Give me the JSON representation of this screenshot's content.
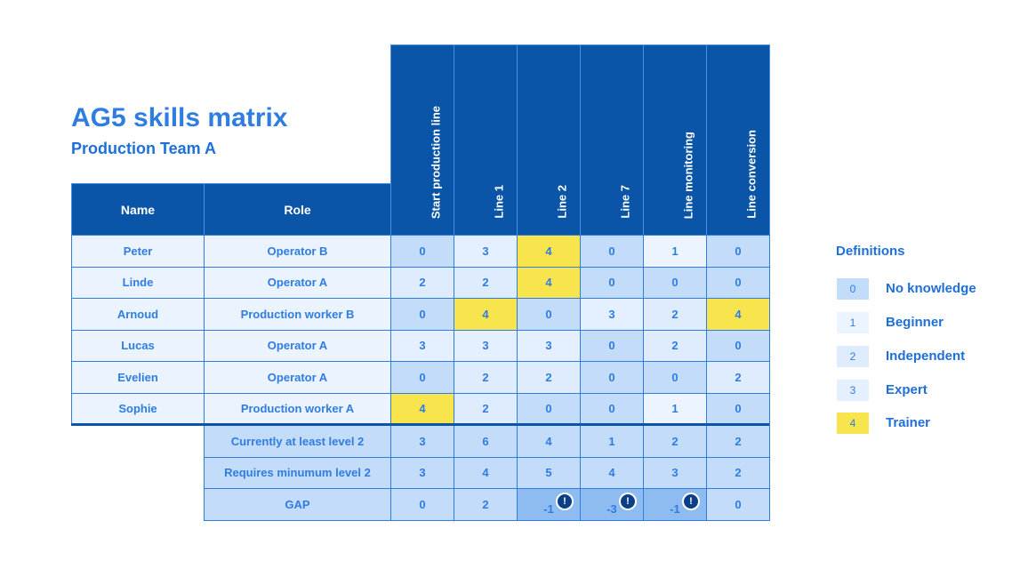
{
  "title": "AG5 skills matrix",
  "subtitle": "Production Team A",
  "headers": {
    "name": "Name",
    "role": "Role",
    "skills": [
      "Start production line",
      "Line 1",
      "Line 2",
      "Line 7",
      "Line monitoring",
      "Line conversion"
    ]
  },
  "rows": [
    {
      "name": "Peter",
      "role": "Operator B",
      "levels": [
        0,
        3,
        4,
        0,
        1,
        0
      ]
    },
    {
      "name": "Linde",
      "role": "Operator A",
      "levels": [
        2,
        2,
        4,
        0,
        0,
        0
      ]
    },
    {
      "name": "Arnoud",
      "role": "Production worker B",
      "levels": [
        0,
        4,
        0,
        3,
        2,
        4
      ]
    },
    {
      "name": "Lucas",
      "role": "Operator A",
      "levels": [
        3,
        3,
        3,
        0,
        2,
        0
      ]
    },
    {
      "name": "Evelien",
      "role": "Operator A",
      "levels": [
        0,
        2,
        2,
        0,
        0,
        2
      ]
    },
    {
      "name": "Sophie",
      "role": "Production worker A",
      "levels": [
        4,
        2,
        0,
        0,
        1,
        0
      ]
    }
  ],
  "summary": [
    {
      "label": "Currently at least level 2",
      "values": [
        3,
        6,
        4,
        1,
        2,
        2
      ]
    },
    {
      "label": "Requires minumum level 2",
      "values": [
        3,
        4,
        5,
        4,
        3,
        2
      ]
    },
    {
      "label": "GAP",
      "values": [
        0,
        2,
        -1,
        -3,
        -1,
        0
      ]
    }
  ],
  "alert_symbol": "!",
  "definitions": {
    "title": "Definitions",
    "items": [
      {
        "level": "0",
        "label": "No knowledge",
        "color": "#c2dcfa"
      },
      {
        "level": "1",
        "label": "Beginner",
        "color": "#ebf4ff"
      },
      {
        "level": "2",
        "label": "Independent",
        "color": "#deecfd"
      },
      {
        "level": "3",
        "label": "Expert",
        "color": "#e4efff"
      },
      {
        "level": "4",
        "label": "Trainer",
        "color": "#f8e54d"
      }
    ]
  }
}
